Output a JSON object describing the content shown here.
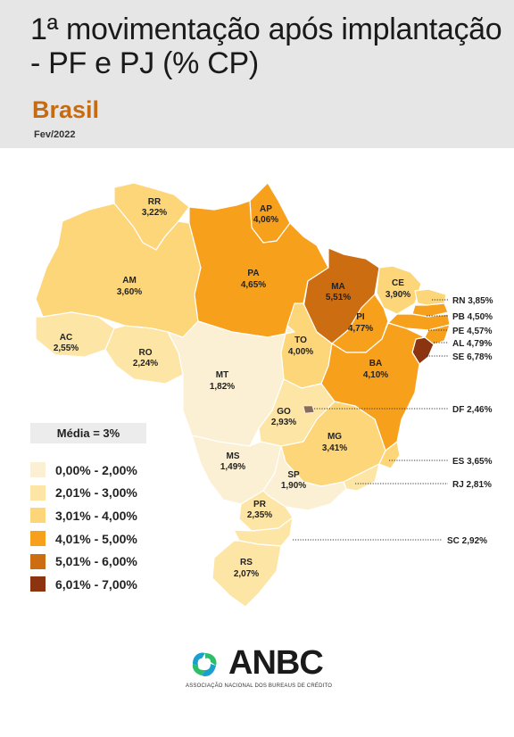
{
  "title": "1ª movimentação após implantação - PF e PJ (% CP)",
  "region": "Brasil",
  "date": "Fev/2022",
  "media": "Média = 3%",
  "colors": {
    "c0": "#fcf0d4",
    "c1": "#fde5a5",
    "c2": "#fdd67a",
    "c3": "#f7a01c",
    "c4": "#cc6d12",
    "c5": "#8c340f"
  },
  "legend": [
    {
      "label": "0,00% - 2,00%",
      "color": "#fcf0d4"
    },
    {
      "label": "2,01% - 3,00%",
      "color": "#fde5a5"
    },
    {
      "label": "3,01% - 4,00%",
      "color": "#fdd67a"
    },
    {
      "label": "4,01% - 5,00%",
      "color": "#f7a01c"
    },
    {
      "label": "5,01% - 6,00%",
      "color": "#cc6d12"
    },
    {
      "label": "6,01% - 7,00%",
      "color": "#8c340f"
    }
  ],
  "states": {
    "RR": {
      "code": "RR",
      "value": "3,22%"
    },
    "AP": {
      "code": "AP",
      "value": "4,06%"
    },
    "AM": {
      "code": "AM",
      "value": "3,60%"
    },
    "PA": {
      "code": "PA",
      "value": "4,65%"
    },
    "MA": {
      "code": "MA",
      "value": "5,51%"
    },
    "CE": {
      "code": "CE",
      "value": "3,90%"
    },
    "PI": {
      "code": "PI",
      "value": "4,77%"
    },
    "AC": {
      "code": "AC",
      "value": "2,55%"
    },
    "RO": {
      "code": "RO",
      "value": "2,24%"
    },
    "TO": {
      "code": "TO",
      "value": "4,00%"
    },
    "BA": {
      "code": "BA",
      "value": "4,10%"
    },
    "MT": {
      "code": "MT",
      "value": "1,82%"
    },
    "GO": {
      "code": "GO",
      "value": "2,93%"
    },
    "MG": {
      "code": "MG",
      "value": "3,41%"
    },
    "MS": {
      "code": "MS",
      "value": "1,49%"
    },
    "SP": {
      "code": "SP",
      "value": "1,90%"
    },
    "PR": {
      "code": "PR",
      "value": "2,35%"
    },
    "RS": {
      "code": "RS",
      "value": "2,07%"
    }
  },
  "external_labels": {
    "RN": "RN 3,85%",
    "PB": "PB 4,50%",
    "PE": "PE 4,57%",
    "AL": "AL 4,79%",
    "SE": "SE 6,78%",
    "DF": "DF 2,46%",
    "ES": "ES 3,65%",
    "RJ": "RJ 2,81%",
    "SC": "SC 2,92%"
  },
  "logo": {
    "name": "ANBC",
    "subtitle": "ASSOCIAÇÃO NACIONAL DOS BUREAUS DE CRÉDITO",
    "icon": "anbc-logo-icon"
  }
}
